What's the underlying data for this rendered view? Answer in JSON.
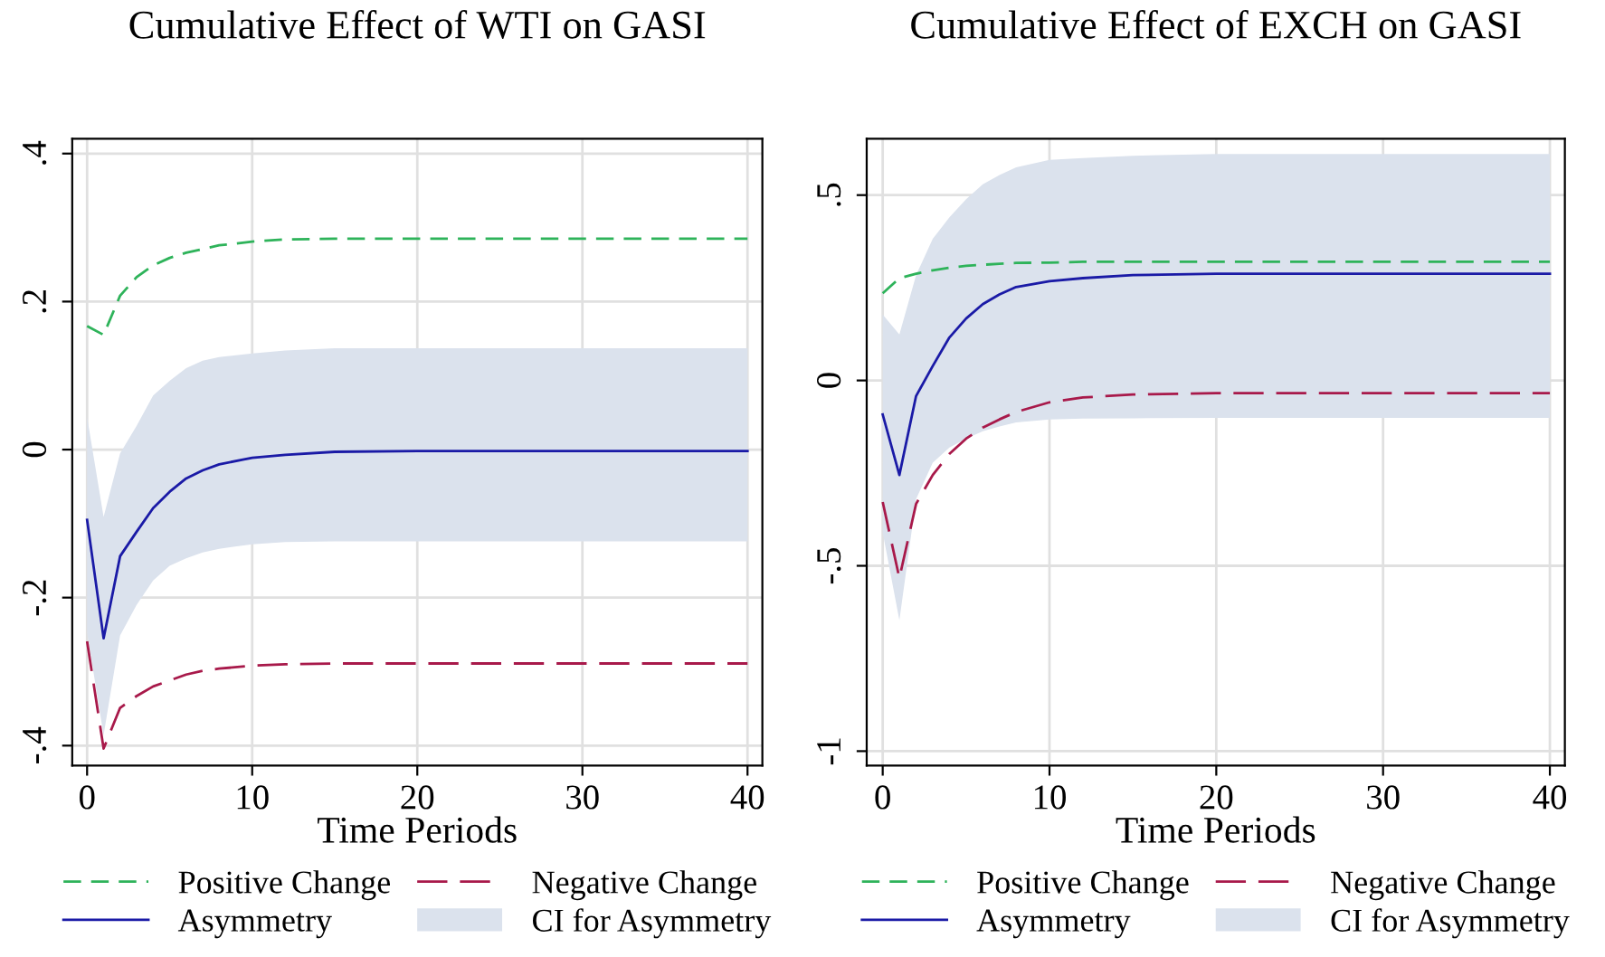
{
  "chart_data": [
    {
      "type": "line",
      "title": "Cumulative Effect of WTI on GASI",
      "xlabel": "Time Periods",
      "x": [
        0,
        1,
        2,
        3,
        4,
        5,
        6,
        7,
        8,
        10,
        12,
        15,
        20,
        30,
        40
      ],
      "xlim": [
        -0.9,
        40.9
      ],
      "xticks": [
        0,
        10,
        20,
        30,
        40
      ],
      "ylim": [
        -0.427,
        0.42
      ],
      "yticks": [
        {
          "value": -0.4,
          "label": "-.4"
        },
        {
          "value": -0.2,
          "label": "-.2"
        },
        0,
        {
          "value": 0.2,
          "label": ".2"
        },
        {
          "value": 0.4,
          "label": ".4"
        }
      ],
      "grid": true,
      "legend": "bottom",
      "annotations": [
        "CI for Asymmetry"
      ],
      "series": [
        {
          "name": "Positive Change",
          "color": "#2eb35a",
          "line_style": "dashed",
          "values": [
            0.167,
            0.155,
            0.208,
            0.233,
            0.249,
            0.259,
            0.266,
            0.271,
            0.276,
            0.281,
            0.284,
            0.285,
            0.285,
            0.285,
            0.285
          ]
        },
        {
          "name": "Negative Change",
          "color": "#a8194a",
          "line_style": "dashed",
          "values": [
            -0.259,
            -0.404,
            -0.349,
            -0.333,
            -0.32,
            -0.312,
            -0.304,
            -0.299,
            -0.296,
            -0.292,
            -0.29,
            -0.289,
            -0.289,
            -0.289,
            -0.289
          ]
        },
        {
          "name": "Asymmetry",
          "color": "#1a1aa6",
          "line_style": "solid",
          "values": [
            -0.095,
            -0.255,
            -0.144,
            -0.111,
            -0.079,
            -0.057,
            -0.039,
            -0.028,
            -0.02,
            -0.011,
            -0.007,
            -0.003,
            -0.002,
            -0.002,
            -0.002
          ],
          "lower": [
            -0.247,
            -0.386,
            -0.251,
            -0.21,
            -0.177,
            -0.157,
            -0.147,
            -0.139,
            -0.134,
            -0.128,
            -0.125,
            -0.124,
            -0.124,
            -0.124,
            -0.124
          ],
          "upper": [
            0.044,
            -0.091,
            -0.005,
            0.032,
            0.073,
            0.093,
            0.11,
            0.12,
            0.125,
            0.13,
            0.134,
            0.137,
            0.137,
            0.137,
            0.137
          ]
        }
      ]
    },
    {
      "type": "line",
      "title": "Cumulative Effect of EXCH on GASI",
      "xlabel": "Time Periods",
      "x": [
        0,
        1,
        2,
        3,
        4,
        5,
        6,
        7,
        8,
        10,
        12,
        15,
        20,
        30,
        40
      ],
      "xlim": [
        -0.96,
        40.9
      ],
      "xticks": [
        0,
        10,
        20,
        30,
        40
      ],
      "ylim": [
        -1.039,
        0.652
      ],
      "yticks": [
        -1,
        {
          "value": -0.5,
          "label": "-.5"
        },
        0,
        {
          "value": 0.5,
          "label": ".5"
        }
      ],
      "grid": true,
      "legend": "bottom",
      "annotations": [
        "CI for Asymmetry"
      ],
      "series": [
        {
          "name": "Positive Change",
          "color": "#2eb35a",
          "line_style": "dashed",
          "values": [
            0.235,
            0.276,
            0.288,
            0.297,
            0.304,
            0.309,
            0.312,
            0.315,
            0.317,
            0.318,
            0.32,
            0.32,
            0.32,
            0.32,
            0.32
          ]
        },
        {
          "name": "Negative Change",
          "color": "#a8194a",
          "line_style": "dashed",
          "values": [
            -0.328,
            -0.533,
            -0.333,
            -0.255,
            -0.198,
            -0.157,
            -0.127,
            -0.105,
            -0.085,
            -0.059,
            -0.046,
            -0.038,
            -0.034,
            -0.034,
            -0.034
          ]
        },
        {
          "name": "Asymmetry",
          "color": "#1a1aa6",
          "line_style": "solid",
          "values": [
            -0.092,
            -0.255,
            -0.042,
            0.039,
            0.116,
            0.167,
            0.206,
            0.232,
            0.252,
            0.268,
            0.276,
            0.284,
            0.288,
            0.288,
            0.288
          ],
          "lower": [
            -0.41,
            -0.647,
            -0.32,
            -0.222,
            -0.181,
            -0.157,
            -0.137,
            -0.124,
            -0.113,
            -0.105,
            -0.103,
            -0.102,
            -0.101,
            -0.101,
            -0.101
          ],
          "upper": [
            0.178,
            0.124,
            0.284,
            0.382,
            0.44,
            0.489,
            0.529,
            0.554,
            0.575,
            0.595,
            0.6,
            0.606,
            0.611,
            0.611,
            0.611
          ]
        }
      ]
    }
  ]
}
